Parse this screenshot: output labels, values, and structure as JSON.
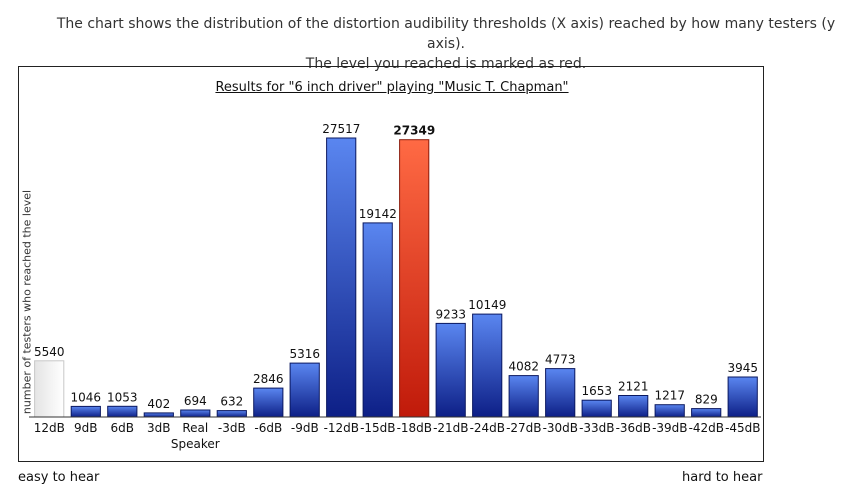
{
  "intro": {
    "line1": "The chart shows the distribution of the distortion audibility thresholds (X axis) reached by how many testers (y axis).",
    "line2": "The level you reached is marked as red."
  },
  "chart_data": {
    "type": "bar",
    "title": "Results for \"6 inch driver\" playing \"Music T. Chapman\"",
    "ylabel": "number of testers who reached the level",
    "xlabel": "",
    "categories": [
      "12dB",
      "9dB",
      "6dB",
      "3dB",
      "Real Speaker",
      "-3dB",
      "-6dB",
      "-9dB",
      "-12dB",
      "-15dB",
      "-18dB",
      "-21dB",
      "-24dB",
      "-27dB",
      "-30dB",
      "-33dB",
      "-36dB",
      "-39dB",
      "-42dB",
      "-45dB"
    ],
    "values": [
      5540,
      1046,
      1053,
      402,
      694,
      632,
      2846,
      5316,
      27517,
      19142,
      27349,
      9233,
      10149,
      4082,
      4773,
      1653,
      2121,
      1217,
      829,
      3945
    ],
    "highlight_index": 10,
    "reference_index": 0,
    "ylim": [
      0,
      27517
    ],
    "grid": false,
    "colors": {
      "normal": "#1f45c4",
      "highlight": "#e8321c",
      "reference": "#f2f2f2"
    }
  },
  "ends": {
    "left": "easy to hear",
    "right": "hard to hear"
  }
}
